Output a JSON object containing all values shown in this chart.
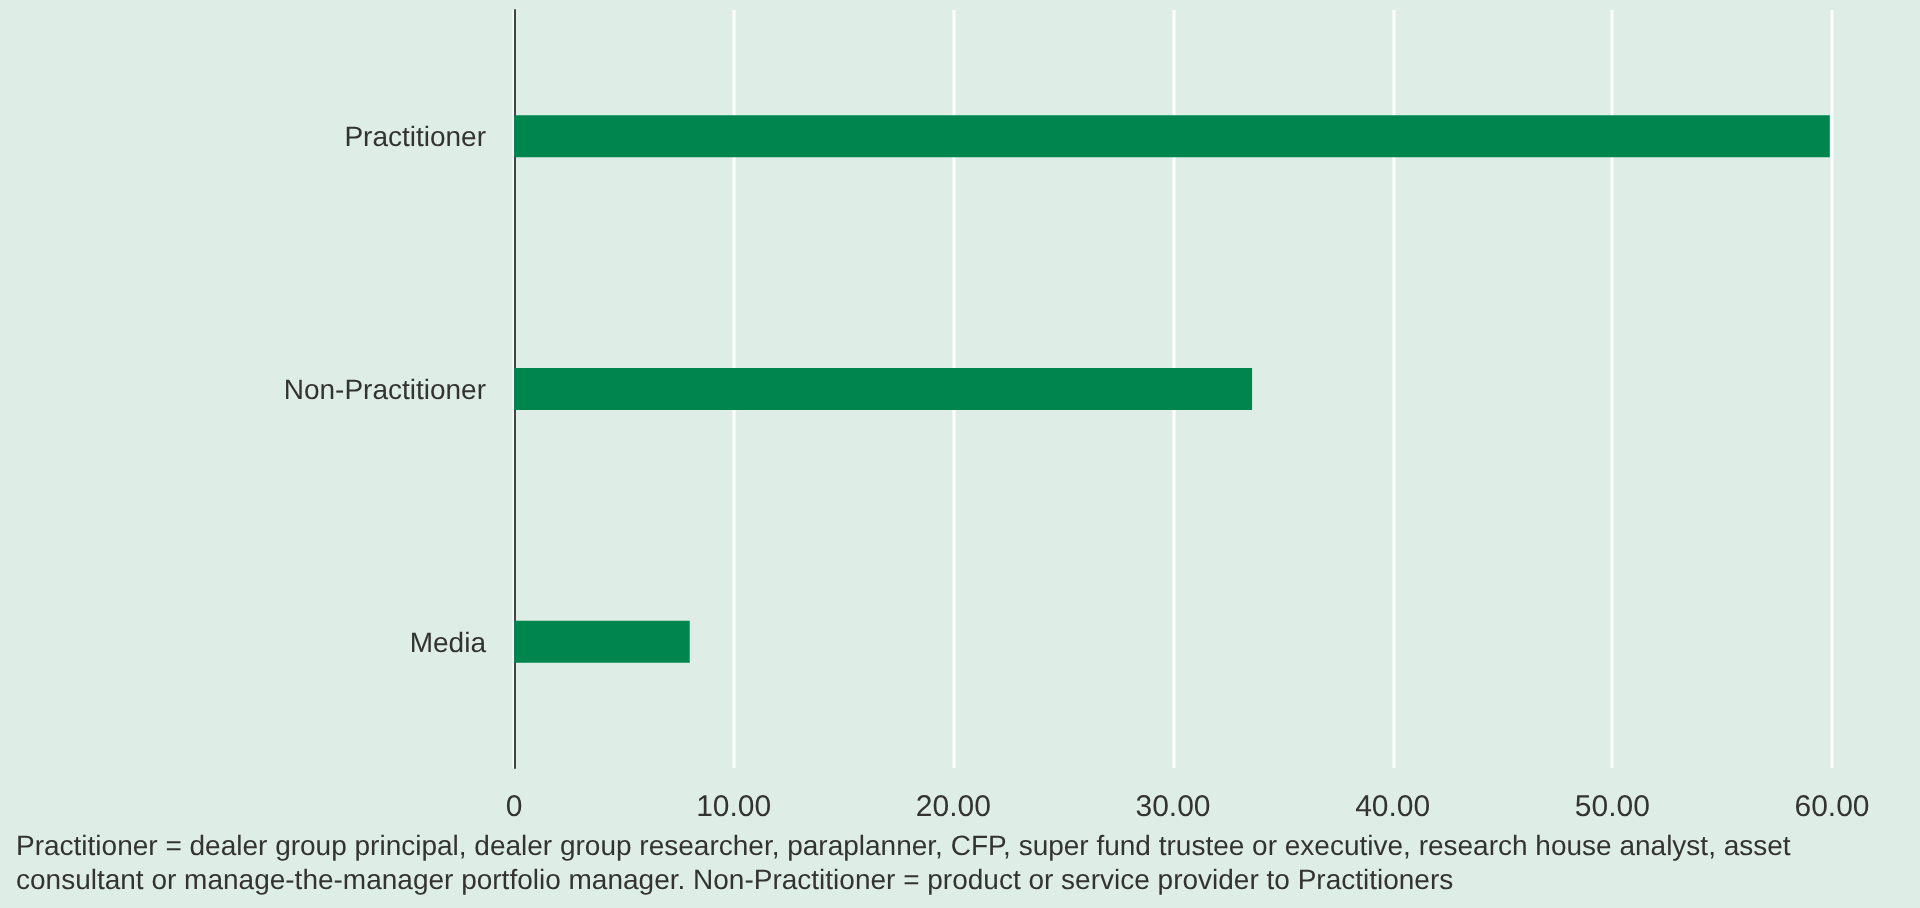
{
  "chart_data": {
    "type": "bar",
    "orientation": "horizontal",
    "categories": [
      "Practitioner",
      "Non-Practitioner",
      "Media"
    ],
    "values": [
      59.9,
      33.6,
      8
    ],
    "color": "#00854f",
    "xlim": [
      0,
      60
    ],
    "xticks": [
      0,
      {
        "value": 10,
        "label": "10.00"
      },
      {
        "value": 20,
        "label": "20.00"
      },
      {
        "value": 30,
        "label": "30.00"
      },
      {
        "value": 40,
        "label": "40.00"
      },
      {
        "value": 50,
        "label": "50.00"
      },
      {
        "value": 60,
        "label": "60.00"
      }
    ],
    "grid": "x",
    "annotations": [
      "Practitioner = dealer group principal, dealer group researcher, paraplanner, CFP, super fund trustee or executive, research house analyst, asset consultant or manage-the-manager portfolio manager. Non-Practitioner = product or service provider to Practitioners"
    ]
  }
}
